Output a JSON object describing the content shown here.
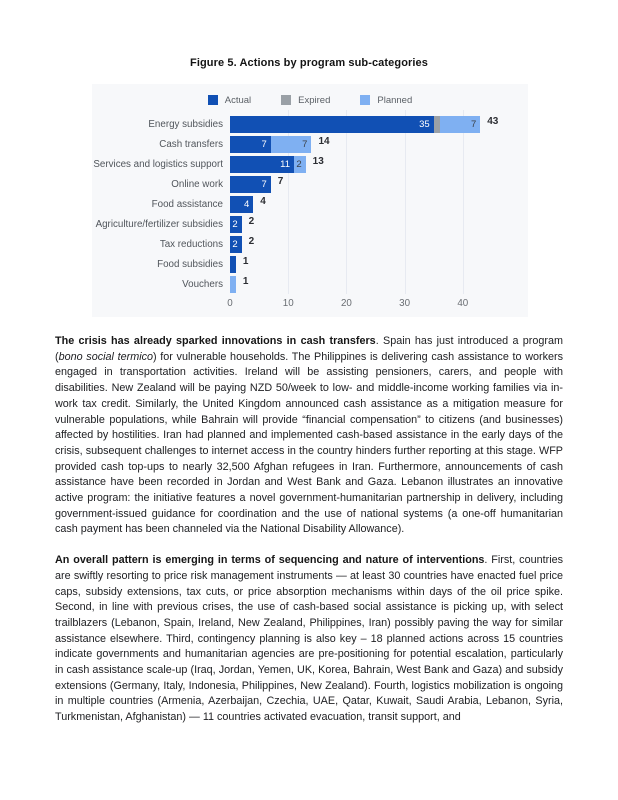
{
  "page": {
    "figure_title": "Figure 5. Actions by program sub-categories"
  },
  "chart_data": {
    "type": "bar",
    "orientation": "horizontal",
    "title": "Figure 5. Actions by program sub-categories",
    "legend_position": "top",
    "grid": true,
    "legend": [
      {
        "name": "Actual",
        "color": "#1150b4",
        "label_color": "#ffffff"
      },
      {
        "name": "Expired",
        "color": "#9aa0a6",
        "label_color": "#ffffff"
      },
      {
        "name": "Planned",
        "color": "#7fb0f2",
        "label_color": "#3b4046"
      }
    ],
    "categories": [
      "Energy subsidies",
      "Cash transfers",
      "Services and logistics support",
      "Online work",
      "Food assistance",
      "Agriculture/fertilizer subsidies",
      "Tax reductions",
      "Food subsidies",
      "Vouchers"
    ],
    "series": [
      {
        "name": "Actual",
        "values": [
          35,
          7,
          11,
          7,
          4,
          2,
          2,
          1,
          0
        ]
      },
      {
        "name": "Expired",
        "values": [
          1,
          0,
          0,
          0,
          0,
          0,
          0,
          0,
          0
        ]
      },
      {
        "name": "Planned",
        "values": [
          7,
          7,
          2,
          0,
          0,
          0,
          0,
          0,
          1
        ]
      }
    ],
    "totals": [
      43,
      14,
      13,
      7,
      4,
      2,
      2,
      1,
      1
    ],
    "x_ticks": [
      0,
      10,
      20,
      30,
      40
    ],
    "x_max_track": 51.2,
    "min_label_value": 2
  },
  "paragraphs": {
    "p1": {
      "lead": "The crisis has already sparked innovations in cash transfers",
      "after_lead": ". Spain has just introduced a program (",
      "italic": "bono social termico",
      "rest": ") for vulnerable households. The Philippines is delivering cash assistance to workers engaged in transportation activities. Ireland will be assisting pensioners, carers, and people with disabilities. New Zealand will be paying NZD 50/week to low- and middle-income working families via in-work tax credit. Similarly, the United Kingdom announced cash assistance as a mitigation measure for vulnerable populations, while Bahrain will provide “financial compensation” to citizens (and businesses) affected by hostilities. Iran had planned and implemented cash-based assistance in the early days of the crisis, subsequent challenges to internet access in the country hinders further reporting at this stage. WFP provided cash top-ups to nearly 32,500 Afghan refugees in Iran. Furthermore, announcements of cash assistance have been recorded in Jordan and West Bank and Gaza. Lebanon illustrates an innovative active program: the initiative features a novel government-humanitarian partnership in delivery, including government-issued guidance for coordination and the use of national systems (a one-off humanitarian cash payment has been channeled via the National Disability Allowance)."
    },
    "p2": {
      "lead": "An overall pattern is emerging in terms of sequencing and nature of interventions",
      "rest": ". First, countries are swiftly resorting to price risk management instruments — at least 30 countries have enacted fuel price caps, subsidy extensions, tax cuts, or price absorption mechanisms within days of the oil price spike. Second, in line with previous crises, the use of cash-based social assistance is picking up, with select trailblazers (Lebanon, Spain, Ireland, New Zealand, Philippines, Iran) possibly paving the way for similar assistance elsewhere. Third, contingency planning is also key – 18 planned actions across 15 countries indicate governments and humanitarian agencies are pre-positioning for potential escalation, particularly in cash assistance scale-up (Iraq, Jordan, Yemen, UK, Korea, Bahrain, West Bank and Gaza) and subsidy extensions (Germany, Italy, Indonesia, Philippines, New Zealand). Fourth, logistics mobilization is ongoing in multiple countries (Armenia, Azerbaijan, Czechia, UAE, Qatar, Kuwait, Saudi Arabia, Lebanon, Syria, Turkmenistan, Afghanistan) — 11 countries activated evacuation, transit support, and"
    }
  }
}
